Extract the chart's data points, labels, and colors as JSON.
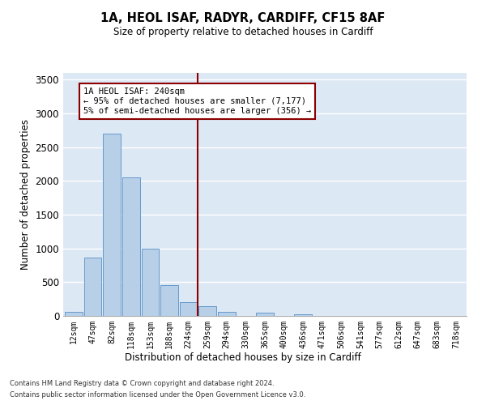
{
  "title1": "1A, HEOL ISAF, RADYR, CARDIFF, CF15 8AF",
  "title2": "Size of property relative to detached houses in Cardiff",
  "xlabel": "Distribution of detached houses by size in Cardiff",
  "ylabel": "Number of detached properties",
  "bar_labels": [
    "12sqm",
    "47sqm",
    "82sqm",
    "118sqm",
    "153sqm",
    "188sqm",
    "224sqm",
    "259sqm",
    "294sqm",
    "330sqm",
    "365sqm",
    "400sqm",
    "436sqm",
    "471sqm",
    "506sqm",
    "541sqm",
    "577sqm",
    "612sqm",
    "647sqm",
    "683sqm",
    "718sqm"
  ],
  "bar_values": [
    60,
    860,
    2700,
    2050,
    1000,
    460,
    210,
    140,
    55,
    0,
    45,
    0,
    30,
    0,
    0,
    0,
    0,
    0,
    0,
    0,
    0
  ],
  "bar_color": "#b8cfe8",
  "bar_edgecolor": "#6699cc",
  "vline_color": "#8b0000",
  "annotation_text": "1A HEOL ISAF: 240sqm\n← 95% of detached houses are smaller (7,177)\n5% of semi-detached houses are larger (356) →",
  "annotation_box_edgecolor": "#8b0000",
  "ylim": [
    0,
    3600
  ],
  "yticks": [
    0,
    500,
    1000,
    1500,
    2000,
    2500,
    3000,
    3500
  ],
  "background_color": "#dde8f5",
  "footer1": "Contains HM Land Registry data © Crown copyright and database right 2024.",
  "footer2": "Contains public sector information licensed under the Open Government Licence v3.0."
}
